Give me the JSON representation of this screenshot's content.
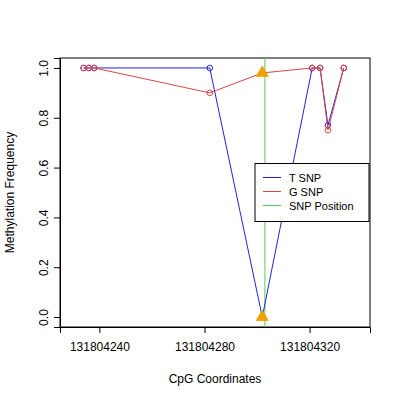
{
  "chart_data": {
    "type": "line",
    "x_label": "CpG Coordinates",
    "y_label": "Methylation Frequency",
    "x": [
      131804234,
      131804236,
      131804238,
      131804282,
      131804302,
      131804321,
      131804324,
      131804327,
      131804333
    ],
    "series": [
      {
        "name": "T SNP",
        "color": "#2222dd",
        "marker": "circle",
        "line_style": "solid",
        "values": [
          1.0,
          1.0,
          1.0,
          1.0,
          0.0,
          1.0,
          1.0,
          0.77,
          1.0
        ]
      },
      {
        "name": "G SNP",
        "color": "#dd4444",
        "marker": "circle",
        "line_style": "solid",
        "values": [
          1.0,
          1.0,
          1.0,
          0.9,
          0.98,
          1.0,
          1.0,
          0.75,
          1.0
        ]
      }
    ],
    "snp_position": {
      "name": "SNP Position",
      "value": 131804303,
      "color": "#55cc55"
    },
    "xlim": [
      131804225,
      131804343
    ],
    "xticks": [
      131804240,
      131804280,
      131804320
    ],
    "ylim": [
      -0.04,
      1.04
    ],
    "yticks": [
      {
        "value": 0,
        "label": "0.0"
      },
      0.2,
      0.4,
      0.6,
      0.8,
      {
        "value": 1,
        "label": "1.0"
      }
    ],
    "legend": "right",
    "grid": false
  }
}
